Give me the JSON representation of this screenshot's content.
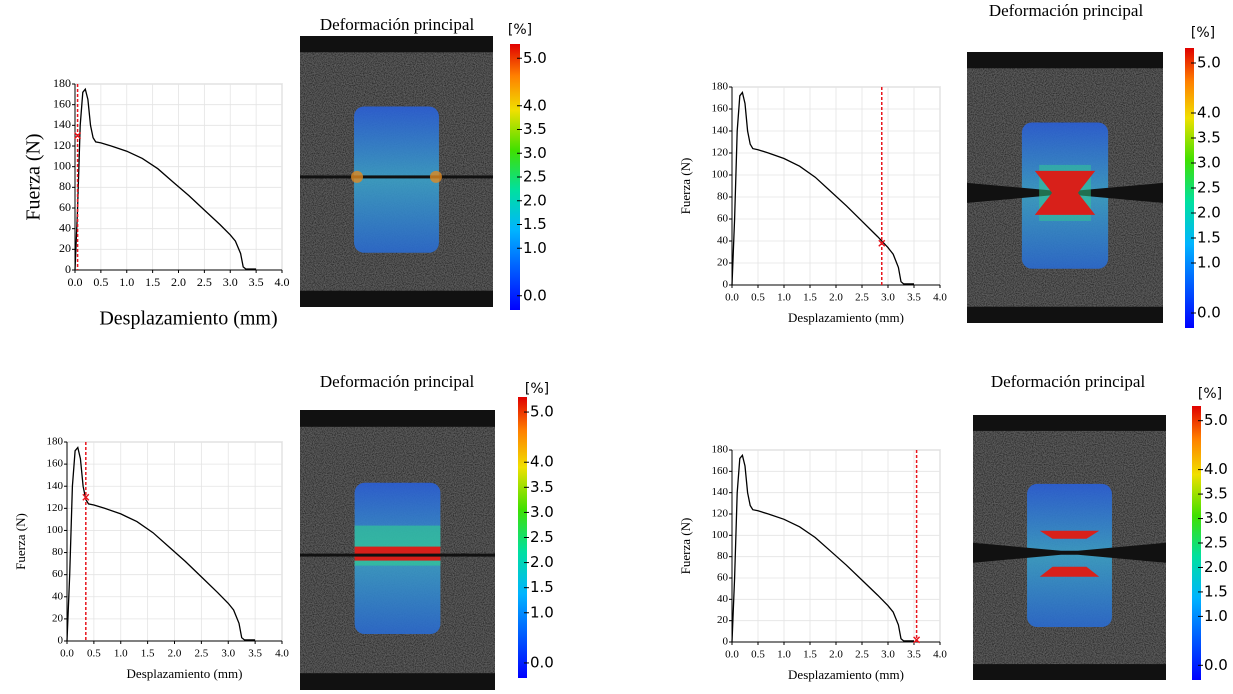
{
  "chart_data": [
    {
      "type": "line",
      "image_title": "Deformación principal",
      "xlabel": "Desplazamiento (mm)",
      "ylabel": "Fuerza (N)",
      "x": [
        0,
        0.05,
        0.1,
        0.15,
        0.2,
        0.25,
        0.3,
        0.35,
        0.4,
        0.5,
        0.7,
        1.0,
        1.3,
        1.6,
        1.9,
        2.2,
        2.5,
        2.8,
        3.0,
        3.1,
        3.2,
        3.25,
        3.3,
        3.5
      ],
      "values": [
        0,
        60,
        140,
        172,
        175,
        165,
        140,
        128,
        124,
        123,
        120,
        115,
        108,
        98,
        85,
        72,
        58,
        44,
        34,
        28,
        16,
        3,
        1,
        1
      ],
      "color": "#000000",
      "grid": true,
      "xlim": [
        0,
        4
      ],
      "ylim": [
        0,
        180
      ],
      "xticks": [
        {
          "value": 0,
          "label": "0.0"
        },
        {
          "value": 0.5,
          "label": "0.5"
        },
        {
          "value": 1,
          "label": "1.0"
        },
        {
          "value": 1.5,
          "label": "1.5"
        },
        {
          "value": 2,
          "label": "2.0"
        },
        {
          "value": 2.5,
          "label": "2.5"
        },
        {
          "value": 3,
          "label": "3.0"
        },
        {
          "value": 3.5,
          "label": "3.5"
        },
        {
          "value": 4,
          "label": "4.0"
        }
      ],
      "yticks": [
        0,
        20,
        40,
        60,
        80,
        100,
        120,
        140,
        160,
        180
      ],
      "marker": {
        "x": 0.05,
        "y": 130,
        "color": "#e8141c"
      },
      "colorbar": {
        "label": "[%]",
        "clim": [
          -0.3,
          5.3
        ],
        "ticks": [
          {
            "value": 5,
            "label": "5.0"
          },
          {
            "value": 4,
            "label": "4.0"
          },
          3.5,
          {
            "value": 3,
            "label": "3.0"
          },
          2.5,
          {
            "value": 2,
            "label": "2.0"
          },
          1.5,
          {
            "value": 1,
            "label": "1.0"
          },
          {
            "value": 0,
            "label": "0.0"
          }
        ]
      }
    },
    {
      "type": "line",
      "image_title": "Deformación principal",
      "xlabel": "Desplazamiento (mm)",
      "ylabel": "Fuerza (N)",
      "x": [
        0,
        0.05,
        0.1,
        0.15,
        0.2,
        0.25,
        0.3,
        0.35,
        0.4,
        0.5,
        0.7,
        1.0,
        1.3,
        1.6,
        1.9,
        2.2,
        2.5,
        2.8,
        3.0,
        3.1,
        3.2,
        3.25,
        3.3,
        3.5
      ],
      "values": [
        0,
        60,
        140,
        172,
        175,
        165,
        140,
        128,
        124,
        123,
        120,
        115,
        108,
        98,
        85,
        72,
        58,
        44,
        34,
        28,
        16,
        3,
        1,
        1
      ],
      "color": "#000000",
      "grid": true,
      "xlim": [
        0,
        4
      ],
      "ylim": [
        0,
        180
      ],
      "xticks": [
        {
          "value": 0,
          "label": "0.0"
        },
        {
          "value": 0.5,
          "label": "0.5"
        },
        {
          "value": 1,
          "label": "1.0"
        },
        {
          "value": 1.5,
          "label": "1.5"
        },
        {
          "value": 2,
          "label": "2.0"
        },
        {
          "value": 2.5,
          "label": "2.5"
        },
        {
          "value": 3,
          "label": "3.0"
        },
        {
          "value": 3.5,
          "label": "3.5"
        },
        {
          "value": 4,
          "label": "4.0"
        }
      ],
      "yticks": [
        0,
        20,
        40,
        60,
        80,
        100,
        120,
        140,
        160,
        180
      ],
      "marker": {
        "x": 2.88,
        "y": 38,
        "color": "#e8141c"
      },
      "colorbar": {
        "label": "[%]",
        "clim": [
          -0.3,
          5.3
        ],
        "ticks": [
          {
            "value": 5,
            "label": "5.0"
          },
          {
            "value": 4,
            "label": "4.0"
          },
          3.5,
          {
            "value": 3,
            "label": "3.0"
          },
          2.5,
          {
            "value": 2,
            "label": "2.0"
          },
          1.5,
          {
            "value": 1,
            "label": "1.0"
          },
          {
            "value": 0,
            "label": "0.0"
          }
        ]
      }
    },
    {
      "type": "line",
      "image_title": "Deformación principal",
      "xlabel": "Desplazamiento (mm)",
      "ylabel": "Fuerza (N)",
      "x": [
        0,
        0.05,
        0.1,
        0.15,
        0.2,
        0.25,
        0.3,
        0.35,
        0.4,
        0.5,
        0.7,
        1.0,
        1.3,
        1.6,
        1.9,
        2.2,
        2.5,
        2.8,
        3.0,
        3.1,
        3.2,
        3.25,
        3.3,
        3.5
      ],
      "values": [
        0,
        60,
        140,
        172,
        175,
        165,
        140,
        128,
        124,
        123,
        120,
        115,
        108,
        98,
        85,
        72,
        58,
        44,
        34,
        28,
        16,
        3,
        1,
        1
      ],
      "color": "#000000",
      "grid": true,
      "xlim": [
        0,
        4
      ],
      "ylim": [
        0,
        180
      ],
      "xticks": [
        {
          "value": 0,
          "label": "0.0"
        },
        {
          "value": 0.5,
          "label": "0.5"
        },
        {
          "value": 1,
          "label": "1.0"
        },
        {
          "value": 1.5,
          "label": "1.5"
        },
        {
          "value": 2,
          "label": "2.0"
        },
        {
          "value": 2.5,
          "label": "2.5"
        },
        {
          "value": 3,
          "label": "3.0"
        },
        {
          "value": 3.5,
          "label": "3.5"
        },
        {
          "value": 4,
          "label": "4.0"
        }
      ],
      "yticks": [
        0,
        20,
        40,
        60,
        80,
        100,
        120,
        140,
        160,
        180
      ],
      "marker": {
        "x": 0.35,
        "y": 130,
        "color": "#e8141c"
      },
      "colorbar": {
        "label": "[%]",
        "clim": [
          -0.3,
          5.3
        ],
        "ticks": [
          {
            "value": 5,
            "label": "5.0"
          },
          {
            "value": 4,
            "label": "4.0"
          },
          3.5,
          {
            "value": 3,
            "label": "3.0"
          },
          2.5,
          {
            "value": 2,
            "label": "2.0"
          },
          1.5,
          {
            "value": 1,
            "label": "1.0"
          },
          {
            "value": 0,
            "label": "0.0"
          }
        ]
      }
    },
    {
      "type": "line",
      "image_title": "Deformación principal",
      "xlabel": "Desplazamiento (mm)",
      "ylabel": "Fuerza (N)",
      "x": [
        0,
        0.05,
        0.1,
        0.15,
        0.2,
        0.25,
        0.3,
        0.35,
        0.4,
        0.5,
        0.7,
        1.0,
        1.3,
        1.6,
        1.9,
        2.2,
        2.5,
        2.8,
        3.0,
        3.1,
        3.2,
        3.25,
        3.3,
        3.5
      ],
      "values": [
        0,
        60,
        140,
        172,
        175,
        165,
        140,
        128,
        124,
        123,
        120,
        115,
        108,
        98,
        85,
        72,
        58,
        44,
        34,
        28,
        16,
        3,
        1,
        1
      ],
      "color": "#000000",
      "grid": true,
      "xlim": [
        0,
        4
      ],
      "ylim": [
        0,
        180
      ],
      "xticks": [
        {
          "value": 0,
          "label": "0.0"
        },
        {
          "value": 0.5,
          "label": "0.5"
        },
        {
          "value": 1,
          "label": "1.0"
        },
        {
          "value": 1.5,
          "label": "1.5"
        },
        {
          "value": 2,
          "label": "2.0"
        },
        {
          "value": 2.5,
          "label": "2.5"
        },
        {
          "value": 3,
          "label": "3.0"
        },
        {
          "value": 3.5,
          "label": "3.5"
        },
        {
          "value": 4,
          "label": "4.0"
        }
      ],
      "yticks": [
        0,
        20,
        40,
        60,
        80,
        100,
        120,
        140,
        160,
        180
      ],
      "marker": {
        "x": 3.55,
        "y": 2,
        "color": "#e8141c"
      },
      "colorbar": {
        "label": "[%]",
        "clim": [
          -0.3,
          5.3
        ],
        "ticks": [
          {
            "value": 5,
            "label": "5.0"
          },
          {
            "value": 4,
            "label": "4.0"
          },
          3.5,
          {
            "value": 3,
            "label": "3.0"
          },
          2.5,
          {
            "value": 2,
            "label": "2.0"
          },
          1.5,
          {
            "value": 1,
            "label": "1.0"
          },
          {
            "value": 0,
            "label": "0.0"
          }
        ]
      }
    }
  ]
}
